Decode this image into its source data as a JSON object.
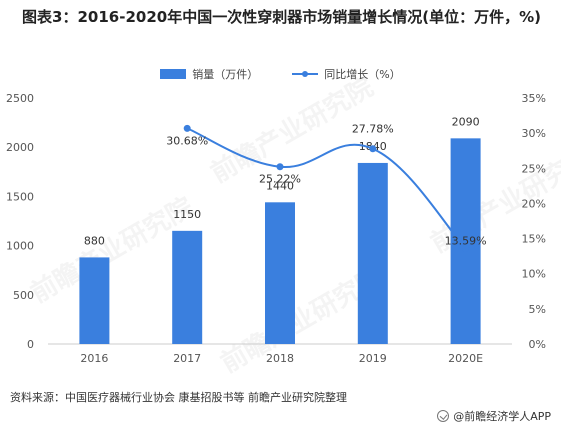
{
  "title": "图表3：2016-2020年中国一次性穿刺器市场销量增长情况(单位：万件，%)",
  "legend": {
    "bar_label": "销量（万件）",
    "line_label": "同比增长（%）"
  },
  "source": "资料来源：中国医疗器械行业协会 康基招股书等 前瞻产业研究院整理",
  "brand": "@前瞻经济学人APP",
  "watermark": "前瞻产业研究院",
  "colors": {
    "bar": "#3a7fde",
    "line": "#3a7fde",
    "axis": "#cccccc"
  },
  "chart_data": {
    "type": "bar",
    "categories": [
      "2016",
      "2017",
      "2018",
      "2019",
      "2020E"
    ],
    "series": [
      {
        "name": "销量（万件）",
        "type": "bar",
        "axis": "left",
        "values": [
          880,
          1150,
          1440,
          1840,
          2090
        ],
        "labels": [
          "880",
          "1150",
          "1440",
          "1840",
          "2090"
        ]
      },
      {
        "name": "同比增长（%）",
        "type": "line",
        "axis": "right",
        "values": [
          null,
          30.68,
          25.22,
          27.78,
          13.59
        ],
        "labels": [
          "",
          "30.68%",
          "25.22%",
          "27.78%",
          "13.59%"
        ]
      }
    ],
    "y_left": {
      "ylim": [
        0,
        2500
      ],
      "ticks": [
        "0",
        "500",
        "1000",
        "1500",
        "2000",
        "2500"
      ]
    },
    "y_right": {
      "ylim": [
        0,
        35
      ],
      "ticks": [
        "0%",
        "5%",
        "10%",
        "15%",
        "20%",
        "25%",
        "30%",
        "35%"
      ]
    },
    "legend_position": "top-center",
    "grid": false
  }
}
